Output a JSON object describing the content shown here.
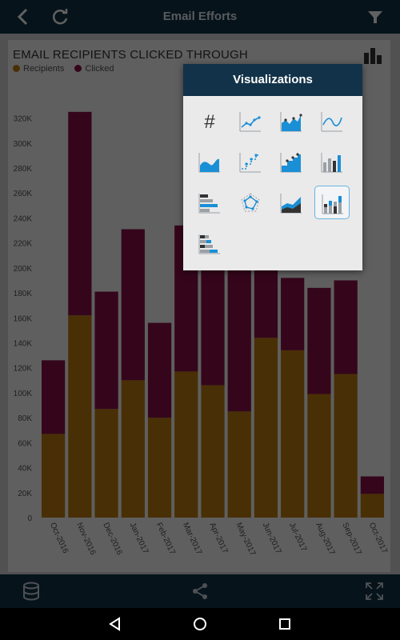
{
  "header": {
    "title": "Email Efforts"
  },
  "chart_data": {
    "type": "bar",
    "stacked": true,
    "title": "EMAIL RECIPIENTS CLICKED THROUGH",
    "categories": [
      "Oct-2016",
      "Nov-2016",
      "Dec-2016",
      "Jan-2017",
      "Feb-2017",
      "Mar-2017",
      "Apr-2017",
      "May-2017",
      "Jun-2017",
      "Jul-2017",
      "Aug-2017",
      "Sep-2017",
      "Oct-2017"
    ],
    "series": [
      {
        "name": "Recipients",
        "color": "#c17c12",
        "values": [
          67000,
          162000,
          87000,
          110000,
          80000,
          117000,
          106000,
          85000,
          144000,
          134000,
          99000,
          115000,
          19000
        ]
      },
      {
        "name": "Clicked",
        "color": "#8c1048",
        "values": [
          59000,
          163000,
          94000,
          121000,
          76000,
          117000,
          125000,
          155000,
          97000,
          58000,
          85000,
          75000,
          14000
        ]
      }
    ],
    "ylim": [
      0,
      330000
    ],
    "yticks": [
      "0",
      "20K",
      "40K",
      "60K",
      "80K",
      "100K",
      "120K",
      "140K",
      "160K",
      "180K",
      "200K",
      "220K",
      "240K",
      "260K",
      "280K",
      "300K",
      "320K"
    ],
    "legend": "top-left",
    "grid": false
  },
  "popup": {
    "title": "Visualizations",
    "items": [
      {
        "icon": "number-icon",
        "selected": false
      },
      {
        "icon": "line-chart-icon",
        "selected": false
      },
      {
        "icon": "area-markers-chart-icon",
        "selected": false
      },
      {
        "icon": "spline-chart-icon",
        "selected": false
      },
      {
        "icon": "area-chart-icon",
        "selected": false
      },
      {
        "icon": "step-line-chart-icon",
        "selected": false
      },
      {
        "icon": "step-area-chart-icon",
        "selected": false
      },
      {
        "icon": "column-chart-icon",
        "selected": false
      },
      {
        "icon": "bar-chart-icon",
        "selected": false
      },
      {
        "icon": "radar-chart-icon",
        "selected": false
      },
      {
        "icon": "stacked-area-chart-icon",
        "selected": false
      },
      {
        "icon": "stacked-column-chart-icon",
        "selected": true
      },
      {
        "icon": "stacked-bar-chart-icon",
        "selected": false
      }
    ]
  },
  "colors": {
    "bar_primary": "#123249",
    "accent": "#1a8fd6"
  }
}
